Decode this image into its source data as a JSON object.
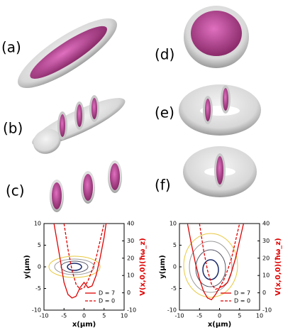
{
  "panel_labels": [
    "(a)",
    "(b)",
    "(c)",
    "(d)",
    "(e)",
    "(f)"
  ],
  "chart_data": [
    {
      "type": "line",
      "xlabel": "x(μm)",
      "ylabel": "y(μm)",
      "y2label": "V(x,0,0)(ħω_z)",
      "xlim": [
        -10,
        10
      ],
      "xticks": [
        -10,
        -5,
        0,
        5,
        10
      ],
      "ylim": [
        -10,
        10
      ],
      "yticks": [
        -10,
        -5,
        0,
        5,
        10
      ],
      "y2lim": [
        -10,
        40
      ],
      "y2ticks": [
        -10,
        0,
        10,
        20,
        30,
        40
      ],
      "series": [
        {
          "name": "D = 7",
          "color": "#e00000",
          "dashed": false,
          "axis": "y2",
          "x": [
            -7.5,
            -6,
            -5,
            -4,
            -3,
            -2,
            -1,
            0,
            1,
            2,
            3,
            4,
            5,
            5.5
          ],
          "values": [
            40,
            20,
            6,
            -1,
            -3,
            -2,
            3,
            6,
            3,
            4,
            10,
            20,
            32,
            40
          ]
        },
        {
          "name": "D = 0",
          "color": "#e00000",
          "dashed": true,
          "axis": "y2",
          "x": [
            -5,
            -4,
            -3,
            -2,
            -1,
            0,
            1,
            2,
            3,
            4,
            5
          ],
          "values": [
            40,
            25,
            13,
            5,
            2,
            3,
            7,
            13,
            20,
            30,
            40
          ]
        }
      ]
    },
    {
      "type": "line",
      "xlabel": "x(μm)",
      "ylabel": "y(μm)",
      "y2label": "V(x,0,0)(ħω_z)",
      "xlim": [
        -10,
        10
      ],
      "xticks": [
        -10,
        -5,
        0,
        5,
        10
      ],
      "ylim": [
        -10,
        10
      ],
      "yticks": [
        -10,
        -5,
        0,
        5,
        10
      ],
      "y2lim": [
        -10,
        40
      ],
      "y2ticks": [
        -10,
        0,
        10,
        20,
        30,
        40
      ],
      "series": [
        {
          "name": "D = 7",
          "color": "#e00000",
          "dashed": false,
          "axis": "y2",
          "x": [
            -8,
            -7,
            -6,
            -5,
            -4,
            -3,
            -2,
            -1,
            0,
            1,
            2,
            3,
            4,
            5,
            6
          ],
          "values": [
            40,
            28,
            17,
            8,
            1,
            -3,
            -4,
            -1,
            3,
            4,
            6,
            12,
            20,
            30,
            40
          ]
        },
        {
          "name": "D = 0",
          "color": "#e00000",
          "dashed": true,
          "axis": "y2",
          "x": [
            -5,
            -4,
            -3,
            -2,
            -1,
            0,
            1,
            2,
            3,
            4,
            5
          ],
          "values": [
            40,
            25,
            13,
            5,
            2,
            3,
            7,
            13,
            20,
            30,
            40
          ]
        }
      ]
    }
  ]
}
